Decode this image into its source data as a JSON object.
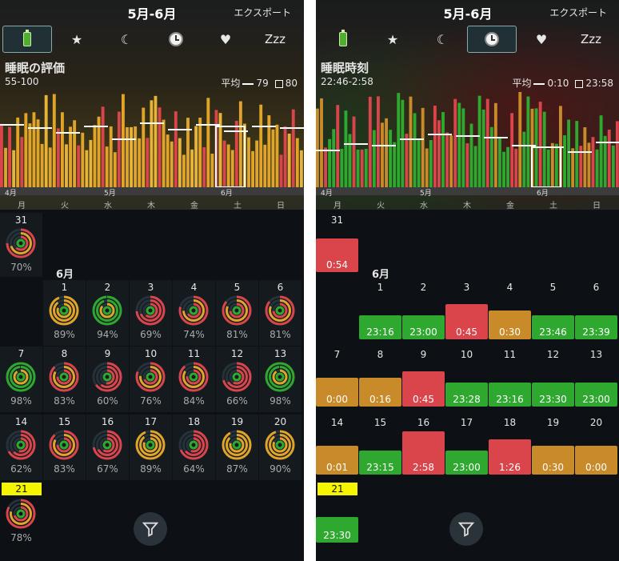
{
  "left": {
    "title": "5月-6月",
    "export": "エクスポート",
    "tabs": [
      {
        "icon": "battery-icon"
      },
      {
        "icon": "star-icon",
        "glyph": "★"
      },
      {
        "icon": "moon-icon",
        "glyph": "☾"
      },
      {
        "icon": "clock-icon"
      },
      {
        "icon": "heart-icon",
        "glyph": "♥"
      },
      {
        "icon": "zzz-icon",
        "glyph": "Zzz"
      }
    ],
    "selected_tab": 0,
    "metric_title": "睡眠の評価",
    "range": "55-100",
    "avg_label": "平均",
    "avg_value": "79",
    "box_value": "80",
    "month_labels": [
      "4月",
      "5月",
      "6月"
    ],
    "weekdays": [
      "月",
      "火",
      "水",
      "木",
      "金",
      "土",
      "日"
    ],
    "may_day": "31",
    "may_pct": "70%",
    "june_label": "6月",
    "days": [
      {
        "d": "1",
        "p": "89%"
      },
      {
        "d": "2",
        "p": "94%"
      },
      {
        "d": "3",
        "p": "69%"
      },
      {
        "d": "4",
        "p": "74%"
      },
      {
        "d": "5",
        "p": "81%"
      },
      {
        "d": "6",
        "p": "81%"
      },
      {
        "d": "7",
        "p": "98%"
      },
      {
        "d": "8",
        "p": "83%"
      },
      {
        "d": "9",
        "p": "60%"
      },
      {
        "d": "10",
        "p": "76%"
      },
      {
        "d": "11",
        "p": "84%"
      },
      {
        "d": "12",
        "p": "66%"
      },
      {
        "d": "13",
        "p": "98%"
      },
      {
        "d": "14",
        "p": "62%"
      },
      {
        "d": "15",
        "p": "83%"
      },
      {
        "d": "16",
        "p": "67%"
      },
      {
        "d": "17",
        "p": "89%"
      },
      {
        "d": "18",
        "p": "64%"
      },
      {
        "d": "19",
        "p": "87%"
      },
      {
        "d": "20",
        "p": "90%"
      }
    ],
    "today": "21",
    "today_pct": "78%"
  },
  "right": {
    "title": "5月-6月",
    "export": "エクスポート",
    "selected_tab": 3,
    "metric_title": "睡眠時刻",
    "range": "22:46-2:58",
    "avg_label": "平均",
    "avg_value": "0:10",
    "box_value": "23:58",
    "may_day": "31",
    "may_time": "0:54",
    "june_label": "6月",
    "days": [
      {
        "d": "1",
        "t": "23:16",
        "c": "green"
      },
      {
        "d": "2",
        "t": "23:00",
        "c": "green"
      },
      {
        "d": "3",
        "t": "0:45",
        "c": "red"
      },
      {
        "d": "4",
        "t": "0:30",
        "c": "orange"
      },
      {
        "d": "5",
        "t": "23:46",
        "c": "green"
      },
      {
        "d": "6",
        "t": "23:39",
        "c": "green"
      },
      {
        "d": "7",
        "t": "0:00",
        "c": "orange"
      },
      {
        "d": "8",
        "t": "0:16",
        "c": "orange"
      },
      {
        "d": "9",
        "t": "0:45",
        "c": "red"
      },
      {
        "d": "10",
        "t": "23:28",
        "c": "green"
      },
      {
        "d": "11",
        "t": "23:16",
        "c": "green"
      },
      {
        "d": "12",
        "t": "23:30",
        "c": "green"
      },
      {
        "d": "13",
        "t": "23:00",
        "c": "green"
      },
      {
        "d": "14",
        "t": "0:01",
        "c": "orange"
      },
      {
        "d": "15",
        "t": "23:15",
        "c": "green"
      },
      {
        "d": "16",
        "t": "2:58",
        "c": "red"
      },
      {
        "d": "17",
        "t": "23:00",
        "c": "green"
      },
      {
        "d": "18",
        "t": "1:26",
        "c": "red"
      },
      {
        "d": "19",
        "t": "0:30",
        "c": "orange"
      },
      {
        "d": "20",
        "t": "0:00",
        "c": "orange"
      }
    ],
    "today": "21",
    "today_time": "23:30"
  },
  "colors": {
    "green": "#2ea82e",
    "orange": "#c98a2a",
    "red": "#d9454b",
    "yellow": "#f6f500"
  }
}
